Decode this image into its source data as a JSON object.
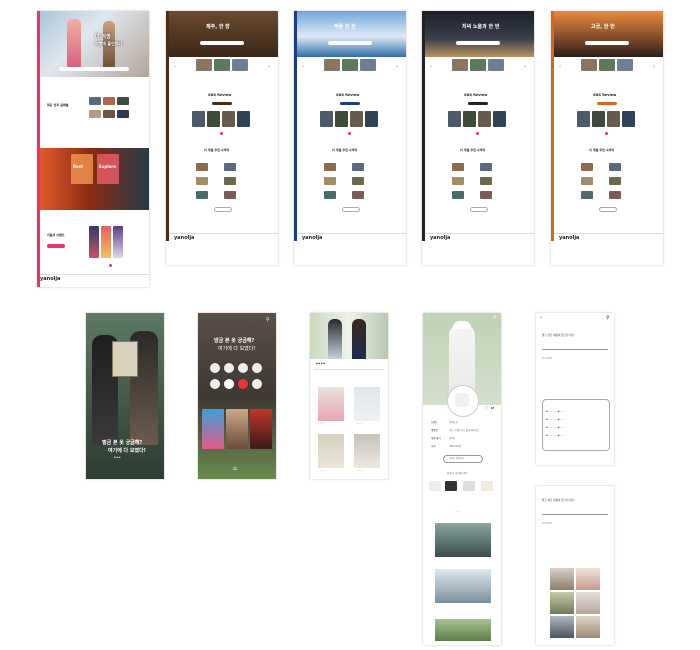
{
  "brand": {
    "logo": "yanolja",
    "accent": "#e9336b"
  },
  "home": {
    "hero_text_1": "더 여행",
    "hero_text_2": "여행에 올인하다",
    "section1_title": "화동 반지 걸레벌",
    "section2_title": "이달의 이벤트",
    "card_left": "Rest",
    "card_right": "Explore"
  },
  "pages": [
    {
      "id": "sea",
      "title": "제주, 한 장",
      "accent": "#4a2b15"
    },
    {
      "id": "island",
      "title": "푸른 한 잔",
      "accent": "#1c3f7a"
    },
    {
      "id": "night",
      "title": "저녁 노을과 한 번",
      "accent": "#222222"
    },
    {
      "id": "temple",
      "title": "고궁, 한 번",
      "accent": "#d2691e"
    }
  ],
  "common": {
    "sns_title": "SNS Review",
    "best_title": "이 계절 추천 숙박지",
    "footer_logo": "yanolja"
  },
  "mobile": {
    "screen1_title": "벌금 본 옷 궁금해?",
    "screen1_sub": "여기에 다 모였다!",
    "screen2_title": "방금 본 옷 궁금해?",
    "screen2_sub": "여기에 다 모였다!",
    "product_brand": "브랜드",
    "product_brand_val": "아페스카",
    "product_name": "제품명",
    "product_name_val": "가든 스웨트셔츠 풀오버티셔츠",
    "product_color": "제품 컬러",
    "product_color_val": "화이트",
    "product_price": "가격",
    "product_price_val": "336,000원",
    "product_button": "사이트 방문하기",
    "related_title": "함께 본 아이템 (15)",
    "q1": "벌고 싶은 제품이 있으신가요?",
    "q2": "벌고 싶은 상품이 있으신가요?",
    "recent_label": "최근 검색어"
  }
}
